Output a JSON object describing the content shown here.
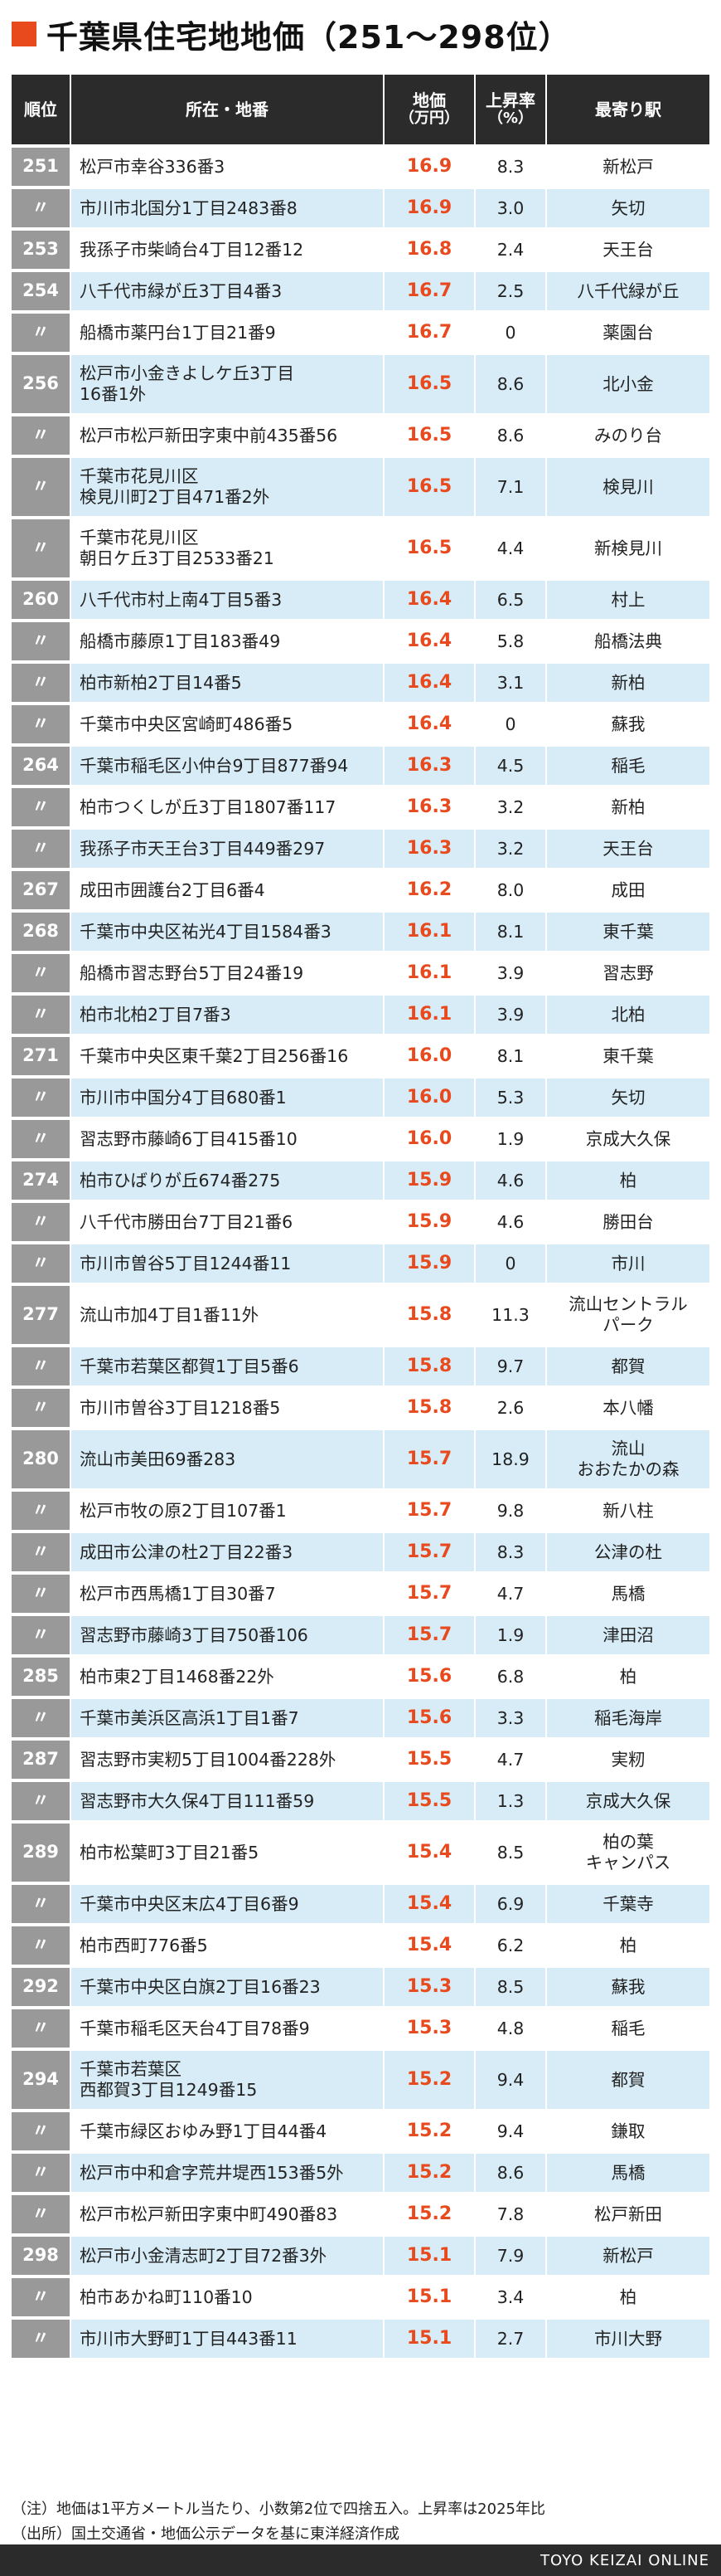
{
  "title": "千葉県住宅地地価（251〜298位）",
  "header": {
    "rank": "順位",
    "address": "所在・地番",
    "price": "地価",
    "price_unit": "（万円）",
    "rate": "上昇率",
    "rate_unit": "（%）",
    "station": "最寄り駅"
  },
  "rows": [
    {
      "rank": "251",
      "address": "松戸市幸谷336番3",
      "price": "16.9",
      "rate": "8.3",
      "station": "新松戸"
    },
    {
      "rank": "〃",
      "address": "市川市北国分1丁目2483番8",
      "price": "16.9",
      "rate": "3.0",
      "station": "矢切"
    },
    {
      "rank": "253",
      "address": "我孫子市柴崎台4丁目12番12",
      "price": "16.8",
      "rate": "2.4",
      "station": "天王台"
    },
    {
      "rank": "254",
      "address": "八千代市緑が丘3丁目4番3",
      "price": "16.7",
      "rate": "2.5",
      "station": "八千代緑が丘"
    },
    {
      "rank": "〃",
      "address": "船橋市薬円台1丁目21番9",
      "price": "16.7",
      "rate": "0",
      "station": "薬園台"
    },
    {
      "rank": "256",
      "address": "松戸市小金きよしケ丘3丁目\n16番1外",
      "price": "16.5",
      "rate": "8.6",
      "station": "北小金"
    },
    {
      "rank": "〃",
      "address": "松戸市松戸新田字東中前435番56",
      "price": "16.5",
      "rate": "8.6",
      "station": "みのり台"
    },
    {
      "rank": "〃",
      "address": "千葉市花見川区\n検見川町2丁目471番2外",
      "price": "16.5",
      "rate": "7.1",
      "station": "検見川"
    },
    {
      "rank": "〃",
      "address": "千葉市花見川区\n朝日ケ丘3丁目2533番21",
      "price": "16.5",
      "rate": "4.4",
      "station": "新検見川"
    },
    {
      "rank": "260",
      "address": "八千代市村上南4丁目5番3",
      "price": "16.4",
      "rate": "6.5",
      "station": "村上"
    },
    {
      "rank": "〃",
      "address": "船橋市藤原1丁目183番49",
      "price": "16.4",
      "rate": "5.8",
      "station": "船橋法典"
    },
    {
      "rank": "〃",
      "address": "柏市新柏2丁目14番5",
      "price": "16.4",
      "rate": "3.1",
      "station": "新柏"
    },
    {
      "rank": "〃",
      "address": "千葉市中央区宮崎町486番5",
      "price": "16.4",
      "rate": "0",
      "station": "蘇我"
    },
    {
      "rank": "264",
      "address": "千葉市稲毛区小仲台9丁目877番94",
      "price": "16.3",
      "rate": "4.5",
      "station": "稲毛"
    },
    {
      "rank": "〃",
      "address": "柏市つくしが丘3丁目1807番117",
      "price": "16.3",
      "rate": "3.2",
      "station": "新柏"
    },
    {
      "rank": "〃",
      "address": "我孫子市天王台3丁目449番297",
      "price": "16.3",
      "rate": "3.2",
      "station": "天王台"
    },
    {
      "rank": "267",
      "address": "成田市囲護台2丁目6番4",
      "price": "16.2",
      "rate": "8.0",
      "station": "成田"
    },
    {
      "rank": "268",
      "address": "千葉市中央区祐光4丁目1584番3",
      "price": "16.1",
      "rate": "8.1",
      "station": "東千葉"
    },
    {
      "rank": "〃",
      "address": "船橋市習志野台5丁目24番19",
      "price": "16.1",
      "rate": "3.9",
      "station": "習志野"
    },
    {
      "rank": "〃",
      "address": "柏市北柏2丁目7番3",
      "price": "16.1",
      "rate": "3.9",
      "station": "北柏"
    },
    {
      "rank": "271",
      "address": "千葉市中央区東千葉2丁目256番16",
      "price": "16.0",
      "rate": "8.1",
      "station": "東千葉"
    },
    {
      "rank": "〃",
      "address": "市川市中国分4丁目680番1",
      "price": "16.0",
      "rate": "5.3",
      "station": "矢切"
    },
    {
      "rank": "〃",
      "address": "習志野市藤崎6丁目415番10",
      "price": "16.0",
      "rate": "1.9",
      "station": "京成大久保"
    },
    {
      "rank": "274",
      "address": "柏市ひばりが丘674番275",
      "price": "15.9",
      "rate": "4.6",
      "station": "柏"
    },
    {
      "rank": "〃",
      "address": "八千代市勝田台7丁目21番6",
      "price": "15.9",
      "rate": "4.6",
      "station": "勝田台"
    },
    {
      "rank": "〃",
      "address": "市川市曽谷5丁目1244番11",
      "price": "15.9",
      "rate": "0",
      "station": "市川"
    },
    {
      "rank": "277",
      "address": "流山市加4丁目1番11外",
      "price": "15.8",
      "rate": "11.3",
      "station": "流山セントラル\nパーク"
    },
    {
      "rank": "〃",
      "address": "千葉市若葉区都賀1丁目5番6",
      "price": "15.8",
      "rate": "9.7",
      "station": "都賀"
    },
    {
      "rank": "〃",
      "address": "市川市曽谷3丁目1218番5",
      "price": "15.8",
      "rate": "2.6",
      "station": "本八幡"
    },
    {
      "rank": "280",
      "address": "流山市美田69番283",
      "price": "15.7",
      "rate": "18.9",
      "station": "流山\nおおたかの森"
    },
    {
      "rank": "〃",
      "address": "松戸市牧の原2丁目107番1",
      "price": "15.7",
      "rate": "9.8",
      "station": "新八柱"
    },
    {
      "rank": "〃",
      "address": "成田市公津の杜2丁目22番3",
      "price": "15.7",
      "rate": "8.3",
      "station": "公津の杜"
    },
    {
      "rank": "〃",
      "address": "松戸市西馬橋1丁目30番7",
      "price": "15.7",
      "rate": "4.7",
      "station": "馬橋"
    },
    {
      "rank": "〃",
      "address": "習志野市藤崎3丁目750番106",
      "price": "15.7",
      "rate": "1.9",
      "station": "津田沼"
    },
    {
      "rank": "285",
      "address": "柏市東2丁目1468番22外",
      "price": "15.6",
      "rate": "6.8",
      "station": "柏"
    },
    {
      "rank": "〃",
      "address": "千葉市美浜区高浜1丁目1番7",
      "price": "15.6",
      "rate": "3.3",
      "station": "稲毛海岸"
    },
    {
      "rank": "287",
      "address": "習志野市実籾5丁目1004番228外",
      "price": "15.5",
      "rate": "4.7",
      "station": "実籾"
    },
    {
      "rank": "〃",
      "address": "習志野市大久保4丁目111番59",
      "price": "15.5",
      "rate": "1.3",
      "station": "京成大久保"
    },
    {
      "rank": "289",
      "address": "柏市松葉町3丁目21番5",
      "price": "15.4",
      "rate": "8.5",
      "station": "柏の葉\nキャンパス"
    },
    {
      "rank": "〃",
      "address": "千葉市中央区末広4丁目6番9",
      "price": "15.4",
      "rate": "6.9",
      "station": "千葉寺"
    },
    {
      "rank": "〃",
      "address": "柏市西町776番5",
      "price": "15.4",
      "rate": "6.2",
      "station": "柏"
    },
    {
      "rank": "292",
      "address": "千葉市中央区白旗2丁目16番23",
      "price": "15.3",
      "rate": "8.5",
      "station": "蘇我"
    },
    {
      "rank": "〃",
      "address": "千葉市稲毛区天台4丁目78番9",
      "price": "15.3",
      "rate": "4.8",
      "station": "稲毛"
    },
    {
      "rank": "294",
      "address": "千葉市若葉区\n西都賀3丁目1249番15",
      "price": "15.2",
      "rate": "9.4",
      "station": "都賀"
    },
    {
      "rank": "〃",
      "address": "千葉市緑区おゆみ野1丁目44番4",
      "price": "15.2",
      "rate": "9.4",
      "station": "鎌取"
    },
    {
      "rank": "〃",
      "address": "松戸市中和倉字荒井堤西153番5外",
      "price": "15.2",
      "rate": "8.6",
      "station": "馬橋"
    },
    {
      "rank": "〃",
      "address": "松戸市松戸新田字東中町490番83",
      "price": "15.2",
      "rate": "7.8",
      "station": "松戸新田"
    },
    {
      "rank": "298",
      "address": "松戸市小金清志町2丁目72番3外",
      "price": "15.1",
      "rate": "7.9",
      "station": "新松戸"
    },
    {
      "rank": "〃",
      "address": "柏市あかね町110番10",
      "price": "15.1",
      "rate": "3.4",
      "station": "柏"
    },
    {
      "rank": "〃",
      "address": "市川市大野町1丁目443番11",
      "price": "15.1",
      "rate": "2.7",
      "station": "市川大野"
    }
  ],
  "notes": [
    "（注）地価は1平方メートル当たり、小数第2位で四捨五入。上昇率は2025年比",
    "（出所）国土交通省・地価公示データを基に東洋経済作成"
  ],
  "credit": "TOYO KEIZAI ONLINE",
  "colors": {
    "accent": "#e8491d",
    "header_bg": "#2b2b2b",
    "rank_bg": "#999999",
    "row_alt": "#d7ecf7"
  }
}
